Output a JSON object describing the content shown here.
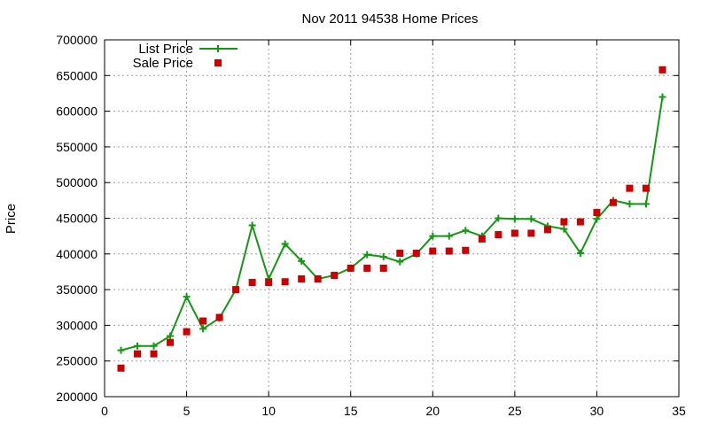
{
  "chart_data": {
    "type": "scatter",
    "title": "Nov 2011 94538 Home Prices",
    "xlabel": "",
    "ylabel": "Price",
    "xlim": [
      0,
      35
    ],
    "ylim": [
      200000,
      700000
    ],
    "x_ticks": [
      0,
      5,
      10,
      15,
      20,
      25,
      30,
      35
    ],
    "y_ticks": [
      200000,
      250000,
      300000,
      350000,
      400000,
      450000,
      500000,
      550000,
      600000,
      650000,
      700000
    ],
    "grid": true,
    "legend_position": "top-left",
    "series": [
      {
        "name": "List Price",
        "style": "linespoints",
        "marker": "plus",
        "color": "#119911",
        "x": [
          1,
          2,
          3,
          4,
          5,
          6,
          7,
          8,
          9,
          10,
          11,
          12,
          13,
          14,
          15,
          16,
          17,
          18,
          19,
          20,
          21,
          22,
          23,
          24,
          25,
          26,
          27,
          28,
          29,
          30,
          31,
          32,
          33,
          34
        ],
        "y": [
          265000,
          271000,
          271000,
          285000,
          340000,
          295000,
          310000,
          350000,
          440000,
          365000,
          414000,
          390000,
          365000,
          370000,
          380000,
          399000,
          396000,
          389000,
          400000,
          425000,
          425000,
          433000,
          425000,
          450000,
          449000,
          449000,
          439000,
          435000,
          401000,
          449000,
          475000,
          470000,
          470000,
          620000
        ]
      },
      {
        "name": "Sale Price",
        "style": "points",
        "marker": "square",
        "color": "#cc0000",
        "x": [
          1,
          2,
          3,
          4,
          5,
          6,
          7,
          8,
          9,
          10,
          11,
          12,
          13,
          14,
          15,
          16,
          17,
          18,
          19,
          20,
          21,
          22,
          23,
          24,
          25,
          26,
          27,
          28,
          29,
          30,
          31,
          32,
          33,
          34
        ],
        "y": [
          240000,
          260000,
          260000,
          276000,
          291000,
          306000,
          311000,
          350000,
          360000,
          360000,
          361000,
          365000,
          365000,
          370000,
          380000,
          380000,
          380000,
          401000,
          401000,
          404000,
          404000,
          405000,
          421000,
          427000,
          429000,
          429000,
          434000,
          445000,
          445000,
          458000,
          472000,
          492000,
          492000,
          658000
        ]
      }
    ]
  }
}
